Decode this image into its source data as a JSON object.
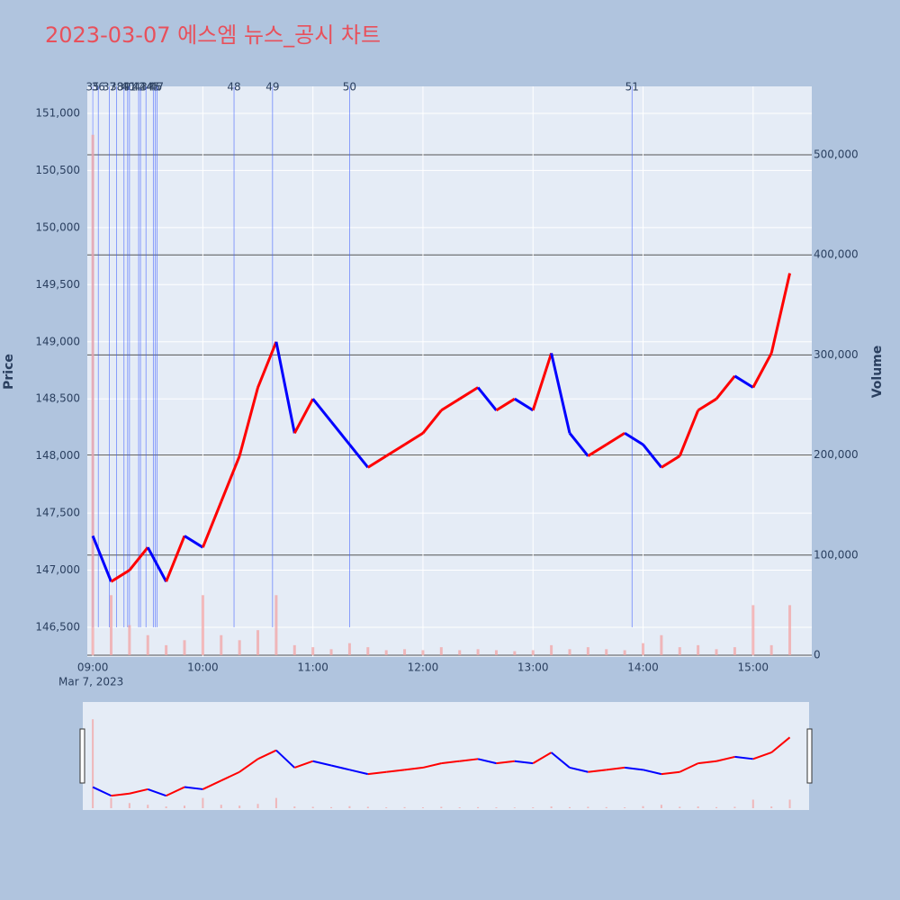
{
  "chart_data": {
    "type": "line",
    "title": "2023-03-07 에스엠 뉴스_공시 차트",
    "date_label": "Mar 7, 2023",
    "y_label": "Price",
    "y2_label": "Volume",
    "x": [
      "09:00",
      "09:10",
      "09:20",
      "09:30",
      "09:40",
      "09:50",
      "10:00",
      "10:10",
      "10:20",
      "10:30",
      "10:40",
      "10:50",
      "11:00",
      "11:10",
      "11:20",
      "11:30",
      "11:40",
      "11:50",
      "12:00",
      "12:10",
      "12:20",
      "12:30",
      "12:40",
      "12:50",
      "13:00",
      "13:10",
      "13:20",
      "13:30",
      "13:40",
      "13:50",
      "14:00",
      "14:10",
      "14:20",
      "14:30",
      "14:40",
      "14:50",
      "15:00",
      "15:10",
      "15:20"
    ],
    "xlim": [
      "08:57",
      "15:32"
    ],
    "xticks": [
      "09:00",
      "10:00",
      "11:00",
      "12:00",
      "13:00",
      "14:00",
      "15:00"
    ],
    "up_color": "#ff0000",
    "down_color": "#0000ff",
    "series": [
      {
        "name": "Price",
        "values": [
          147300,
          146900,
          147000,
          147200,
          146900,
          147300,
          147200,
          147600,
          148000,
          148600,
          149000,
          148200,
          148500,
          148300,
          148100,
          147900,
          148000,
          148100,
          148200,
          148400,
          148500,
          148600,
          148400,
          148500,
          148400,
          148900,
          148200,
          148000,
          148100,
          148200,
          148100,
          147900,
          148000,
          148400,
          148500,
          148700,
          148600,
          148900,
          149600
        ]
      },
      {
        "name": "Volume",
        "axis": "y2",
        "color": "#f4a0a0",
        "values": [
          520000,
          60000,
          30000,
          20000,
          10000,
          15000,
          60000,
          20000,
          15000,
          25000,
          60000,
          10000,
          8000,
          6000,
          12000,
          8000,
          5000,
          6000,
          5000,
          8000,
          5000,
          6000,
          5000,
          4000,
          5000,
          10000,
          6000,
          8000,
          6000,
          5000,
          12000,
          20000,
          8000,
          10000,
          6000,
          8000,
          50000,
          10000,
          50000
        ]
      }
    ],
    "ylim": [
      146240,
      151236
    ],
    "yticks": [
      {
        "value": 146500,
        "label": "146,500"
      },
      {
        "value": 147000,
        "label": "147,000"
      },
      {
        "value": 147500,
        "label": "147,500"
      },
      {
        "value": 148000,
        "label": "148,000"
      },
      {
        "value": 148500,
        "label": "148,500"
      },
      {
        "value": 149000,
        "label": "149,000"
      },
      {
        "value": 149500,
        "label": "149,500"
      },
      {
        "value": 150000,
        "label": "150,000"
      },
      {
        "value": 150500,
        "label": "150,500"
      },
      {
        "value": 151000,
        "label": "151,000"
      }
    ],
    "y2lim": [
      -1800,
      568350
    ],
    "y2ticks": [
      0,
      {
        "value": 100000,
        "label": "100,000"
      },
      {
        "value": 200000,
        "label": "200,000"
      },
      {
        "value": 300000,
        "label": "300,000"
      },
      {
        "value": 400000,
        "label": "400,000"
      },
      {
        "value": 500000,
        "label": "500,000"
      }
    ],
    "news": [
      {
        "time": "09:00",
        "label": "35"
      },
      {
        "time": "09:03",
        "label": "36"
      },
      {
        "time": "09:09",
        "label": "37"
      },
      {
        "time": "09:13",
        "label": "38"
      },
      {
        "time": "09:17",
        "label": "39"
      },
      {
        "time": "09:19",
        "label": "40"
      },
      {
        "time": "09:20",
        "label": "41"
      },
      {
        "time": "09:25",
        "label": "42"
      },
      {
        "time": "09:26",
        "label": "43"
      },
      {
        "time": "09:29",
        "label": "44"
      },
      {
        "time": "09:33",
        "label": "45"
      },
      {
        "time": "09:34",
        "label": "46"
      },
      {
        "time": "09:35",
        "label": "47"
      },
      {
        "time": "10:17",
        "label": "48"
      },
      {
        "time": "10:38",
        "label": "49"
      },
      {
        "time": "11:20",
        "label": "50"
      },
      {
        "time": "13:54",
        "label": "51"
      }
    ]
  }
}
